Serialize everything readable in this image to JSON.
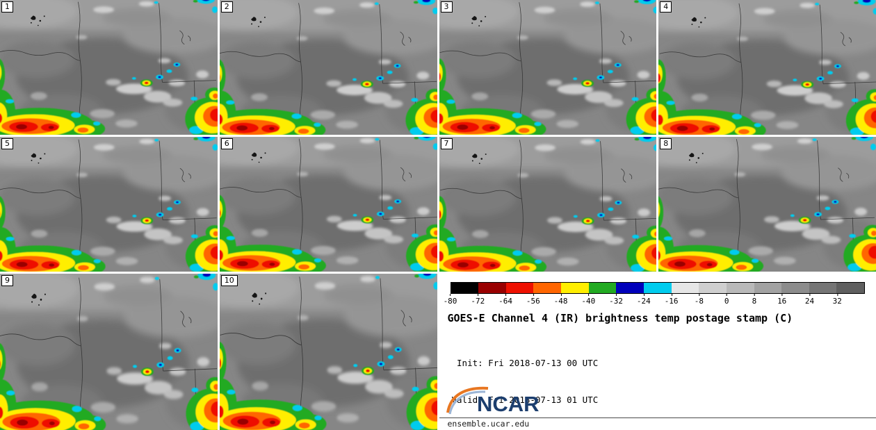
{
  "panels": [
    {
      "label": "1"
    },
    {
      "label": "2"
    },
    {
      "label": "3"
    },
    {
      "label": "4"
    },
    {
      "label": "5"
    },
    {
      "label": "6"
    },
    {
      "label": "7"
    },
    {
      "label": "8"
    },
    {
      "label": "9"
    },
    {
      "label": "10"
    }
  ],
  "colorbar": {
    "range": [
      -80,
      40
    ],
    "ticks": [
      -80,
      -72,
      -64,
      -56,
      -48,
      -40,
      -32,
      -24,
      -16,
      -8,
      0,
      8,
      16,
      24,
      32
    ],
    "segment_colors": [
      "#000000",
      "#990000",
      "#ee1100",
      "#ff6600",
      "#ffee00",
      "#22aa22",
      "#0000bb",
      "#00ccee",
      "#e6e6e6",
      "#cfcfcf",
      "#b9b9b9",
      "#a2a2a2",
      "#8c8c8c",
      "#757575",
      "#5f5f5f"
    ],
    "units": "C"
  },
  "info": {
    "title": "GOES-E Channel 4 (IR) brightness temp postage stamp (C)",
    "init_line": " Init: Fri 2018-07-13 00 UTC",
    "valid_line": "Valid: Fri 2018-07-13 01 UTC"
  },
  "footer": {
    "logo_text": "NCAR",
    "url": "ensemble.ucar.edu",
    "brand_color": "#1c3e6e"
  }
}
